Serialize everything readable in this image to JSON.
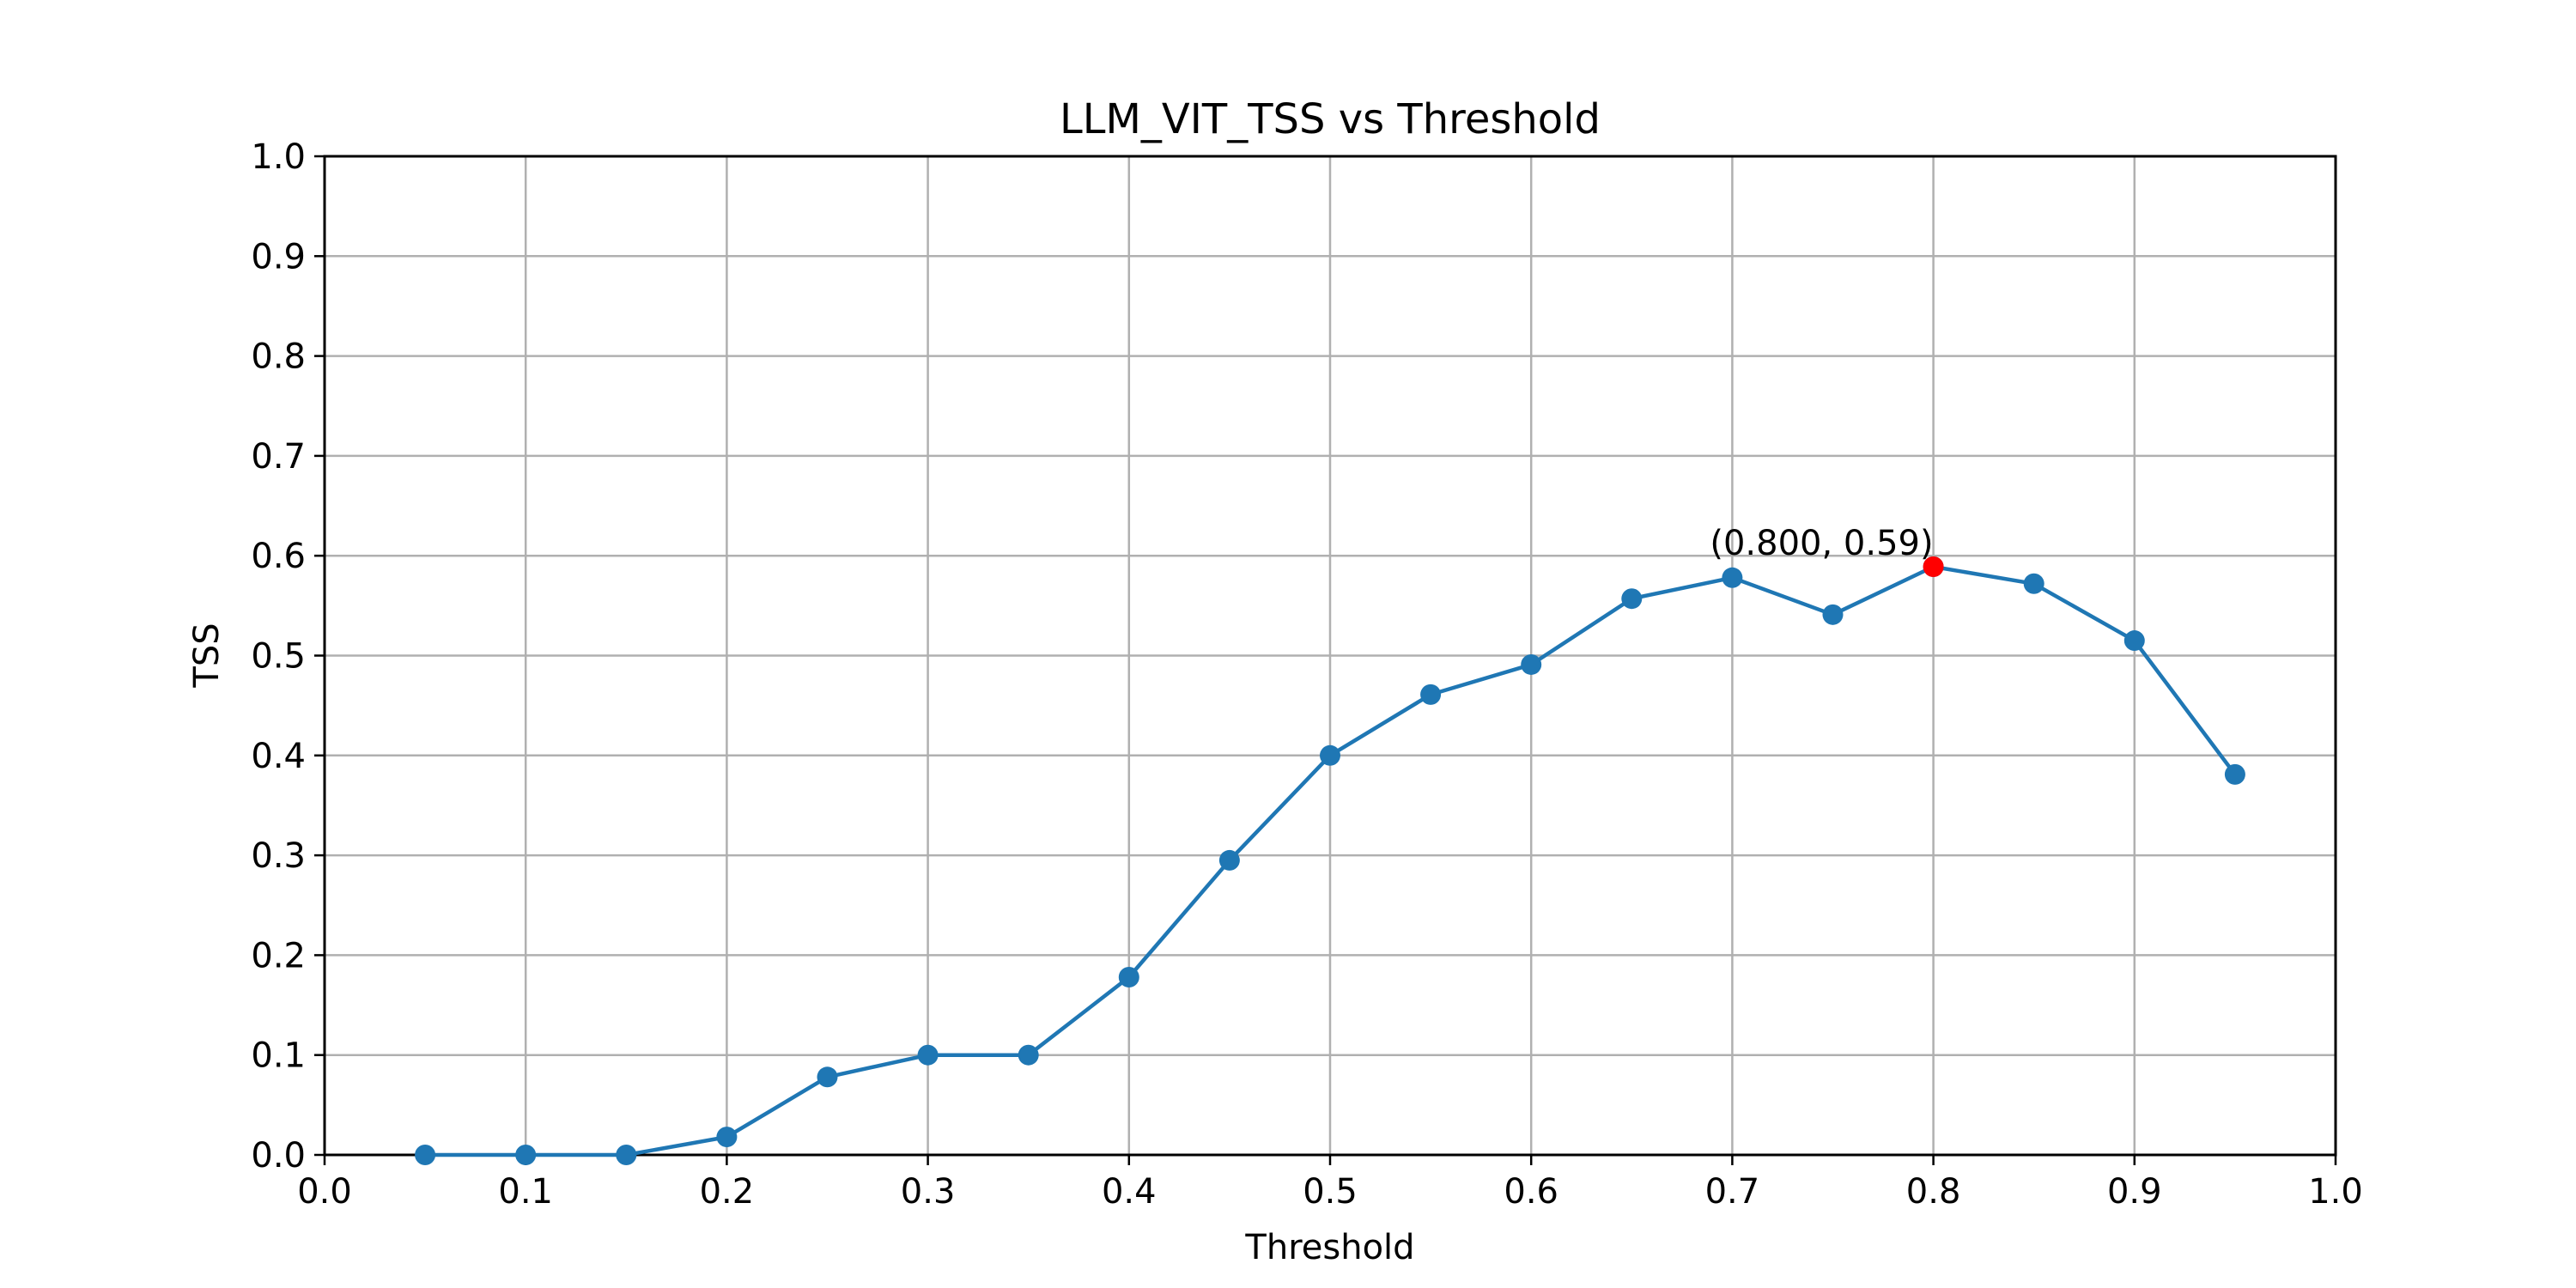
{
  "chart_data": {
    "type": "line",
    "title": "LLM_VIT_TSS vs Threshold",
    "xlabel": "Threshold",
    "ylabel": "TSS",
    "xlim": [
      0.0,
      1.0
    ],
    "ylim": [
      0.0,
      1.0
    ],
    "grid": true,
    "x_ticks": [
      "0.0",
      "0.1",
      "0.2",
      "0.3",
      "0.4",
      "0.5",
      "0.6",
      "0.7",
      "0.8",
      "0.9",
      "1.0"
    ],
    "y_ticks": [
      "0.0",
      "0.1",
      "0.2",
      "0.3",
      "0.4",
      "0.5",
      "0.6",
      "0.7",
      "0.8",
      "0.9",
      "1.0"
    ],
    "series": [
      {
        "color": "#1f77b4",
        "marker": "circle",
        "x": [
          0.05,
          0.1,
          0.15,
          0.2,
          0.25,
          0.3,
          0.35,
          0.4,
          0.45,
          0.5,
          0.55,
          0.6,
          0.65,
          0.7,
          0.75,
          0.8,
          0.85,
          0.9,
          0.95
        ],
        "y": [
          0.0,
          0.0,
          0.0,
          0.018,
          0.078,
          0.1,
          0.1,
          0.178,
          0.295,
          0.4,
          0.461,
          0.491,
          0.557,
          0.578,
          0.541,
          0.589,
          0.572,
          0.515,
          0.381
        ]
      }
    ],
    "highlight": {
      "x": 0.8,
      "y": 0.589,
      "color": "#ff0000",
      "label": "(0.800, 0.59)"
    }
  }
}
